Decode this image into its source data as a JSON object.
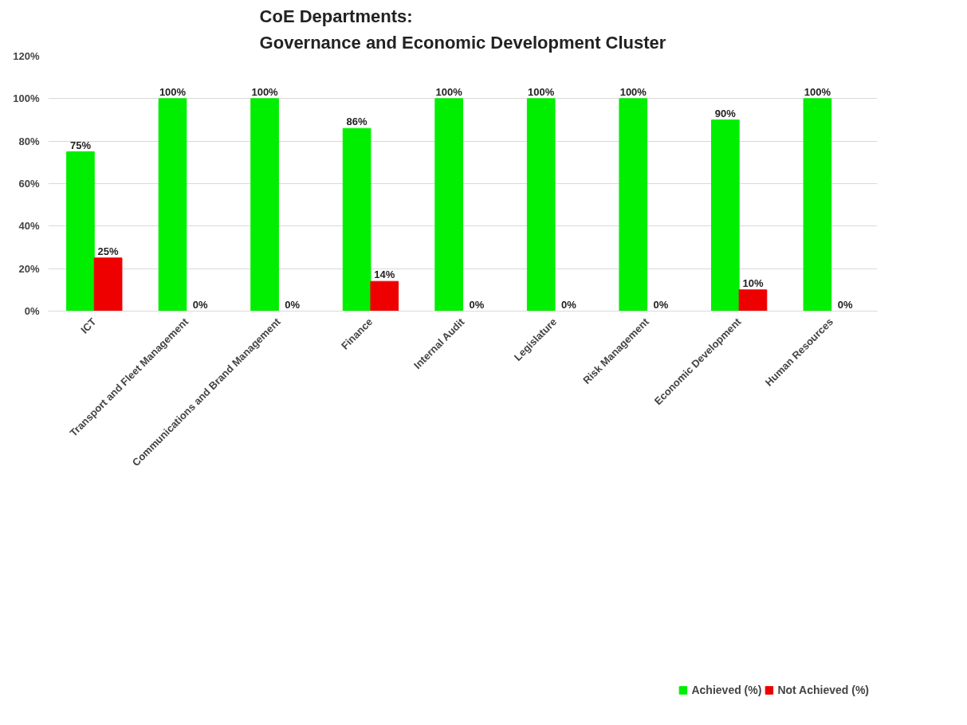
{
  "chart_data": {
    "type": "bar",
    "title": "CoE Departments:\nGovernance and Economic Development Cluster",
    "categories": [
      "ICT",
      "Transport and Fleet Management",
      "Communications and Brand Management",
      "Finance",
      "Internal Audit",
      "Legislature",
      "Risk Management",
      "Economic Development",
      "Human Resources"
    ],
    "series": [
      {
        "name": "Achieved (%)",
        "color": "#00ee00",
        "values": [
          75,
          100,
          100,
          86,
          100,
          100,
          100,
          90,
          100
        ],
        "value_labels": [
          "75%",
          "100%",
          "100%",
          "86%",
          "100%",
          "100%",
          "100%",
          "90%",
          "100%"
        ]
      },
      {
        "name": "Not Achieved (%)",
        "color": "#ee0000",
        "values": [
          25,
          0,
          0,
          14,
          0,
          0,
          0,
          10,
          0
        ],
        "value_labels": [
          "25%",
          "0%",
          "0%",
          "14%",
          "0%",
          "0%",
          "0%",
          "10%",
          "0%"
        ]
      }
    ],
    "ylim": [
      0,
      120
    ],
    "yticks": [
      {
        "value": 0,
        "label": "0%"
      },
      {
        "value": 20,
        "label": "20%"
      },
      {
        "value": 40,
        "label": "40%"
      },
      {
        "value": 60,
        "label": "60%"
      },
      {
        "value": 80,
        "label": "80%"
      },
      {
        "value": 100,
        "label": "100%"
      },
      {
        "value": 120,
        "label": "120%"
      }
    ],
    "grid": "y",
    "legend": "bottom"
  }
}
